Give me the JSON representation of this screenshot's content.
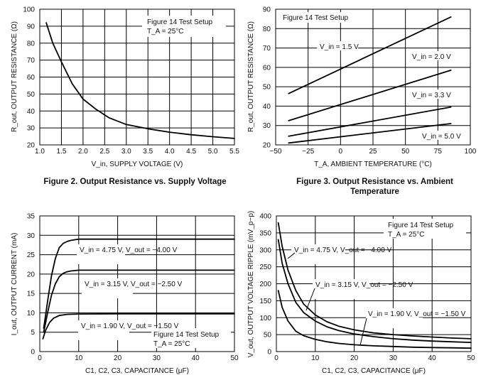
{
  "figures": [
    {
      "caption": "Figure 2. Output Resistance vs. Supply Voltage",
      "chart_data": {
        "type": "line",
        "xlabel": "V_in, SUPPLY VOLTAGE (V)",
        "ylabel": "R_out, OUTPUT RESISTANCE (Ω)",
        "xlim": [
          1.0,
          5.5
        ],
        "ylim": [
          20,
          100
        ],
        "xticks": [
          1.0,
          1.5,
          2.0,
          2.5,
          3.0,
          3.5,
          4.0,
          4.5,
          5.0,
          5.5
        ],
        "xtick_labels": [
          "1.0",
          "1.5",
          "2.0",
          "2.5",
          "3.0",
          "3.5",
          "4.0",
          "4.5",
          "5.0",
          "5.5"
        ],
        "yticks": [
          20,
          30,
          40,
          50,
          60,
          70,
          80,
          90,
          100
        ],
        "ytick_labels": [
          "20",
          "30",
          "40",
          "50",
          "60",
          "70",
          "80",
          "90",
          "100"
        ],
        "grid": true,
        "series": [
          {
            "label": "",
            "x": [
              1.15,
              1.3,
              1.5,
              1.75,
              2.0,
              2.3,
              2.6,
              3.0,
              3.5,
              4.0,
              4.5,
              5.0,
              5.5
            ],
            "y": [
              92,
              80,
              69,
              56,
              47,
              41,
              36,
              32,
              29.5,
              27.5,
              26,
              24.8,
              23.8
            ]
          }
        ],
        "annotations": [
          {
            "lines": [
              "Figure 14 Test Setup",
              "T_A = 25°C"
            ]
          }
        ]
      }
    },
    {
      "caption": "Figure 3. Output Resistance vs. Ambient Temperature",
      "chart_data": {
        "type": "line",
        "xlabel": "T_A, AMBIENT TEMPERATURE (°C)",
        "ylabel": "R_out, OUTPUT RESISTANCE (Ω)",
        "xlim": [
          -50,
          100
        ],
        "ylim": [
          20,
          90
        ],
        "xticks": [
          -50,
          -25,
          0,
          25,
          50,
          75,
          100
        ],
        "xtick_labels": [
          "−50",
          "−25",
          "0",
          "25",
          "50",
          "75",
          "100"
        ],
        "yticks": [
          20,
          30,
          40,
          50,
          60,
          70,
          80,
          90
        ],
        "ytick_labels": [
          "20",
          "30",
          "40",
          "50",
          "60",
          "70",
          "80",
          "90"
        ],
        "grid": true,
        "series": [
          {
            "label": "V_in = 1.5 V",
            "x": [
              -40,
              85
            ],
            "y": [
              46.5,
              86
            ]
          },
          {
            "label": "V_in = 2.0 V",
            "x": [
              -40,
              85
            ],
            "y": [
              32.5,
              58.5
            ]
          },
          {
            "label": "V_in = 3.3 V",
            "x": [
              -40,
              85
            ],
            "y": [
              24.5,
              39.5
            ]
          },
          {
            "label": "V_in = 5.0 V",
            "x": [
              -40,
              85
            ],
            "y": [
              21,
              31
            ]
          }
        ],
        "annotations": [
          {
            "lines": [
              "Figure 14 Test Setup"
            ]
          }
        ]
      }
    },
    {
      "caption": "",
      "chart_data": {
        "type": "line",
        "xlabel": "C1, C2, C3, CAPACITANCE (μF)",
        "ylabel": "I_out, OUTPUT CURRENT (mA)",
        "xlim": [
          0,
          50
        ],
        "ylim": [
          0,
          35
        ],
        "xticks": [
          0,
          10,
          20,
          30,
          40,
          50
        ],
        "xtick_labels": [
          "0",
          "10",
          "20",
          "30",
          "40",
          "50"
        ],
        "yticks": [
          0,
          5,
          10,
          15,
          20,
          25,
          30,
          35
        ],
        "ytick_labels": [
          "0",
          "5",
          "10",
          "15",
          "20",
          "25",
          "30",
          "35"
        ],
        "grid": true,
        "series": [
          {
            "label": "V_in = 4.75 V, V_out = −4.00 V",
            "x": [
              1,
              2,
              3,
              4,
              5,
              6,
              7,
              8,
              10,
              15,
              20,
              30,
              40,
              50
            ],
            "y": [
              6,
              13,
              19.5,
              24,
              26.8,
              27.9,
              28.4,
              28.7,
              29,
              29,
              29,
              29,
              29,
              29
            ]
          },
          {
            "label": "V_in = 3.15 V, V_out = −2.50 V",
            "x": [
              1,
              2,
              3,
              4,
              5,
              6,
              7,
              8,
              10,
              15,
              20,
              30,
              40,
              50
            ],
            "y": [
              5,
              10,
              14.5,
              17.5,
              19.3,
              20.2,
              20.6,
              20.8,
              21,
              21,
              21,
              21,
              21,
              21
            ]
          },
          {
            "label": "V_in = 1.90 V, V_out = −1.50 V",
            "x": [
              0.8,
              1.5,
              2.5,
              3.5,
              5,
              7,
              10,
              20,
              30,
              40,
              50
            ],
            "y": [
              3.3,
              5.5,
              7.5,
              8.6,
              9.3,
              9.6,
              9.7,
              9.75,
              9.75,
              9.75,
              9.75
            ]
          }
        ],
        "annotations": [
          {
            "lines": [
              "Figure 14 Test Setup",
              "T_A = 25°C"
            ]
          }
        ]
      }
    },
    {
      "caption": "",
      "chart_data": {
        "type": "line",
        "xlabel": "C1, C2, C3, CAPACITANCE (μF)",
        "ylabel": "V_out, OUTPUT VOLTAGE RIPPLE (mV_p−p)",
        "xlim": [
          0,
          50
        ],
        "ylim": [
          0,
          400
        ],
        "xticks": [
          0,
          10,
          20,
          30,
          40,
          50
        ],
        "xtick_labels": [
          "0",
          "10",
          "20",
          "30",
          "40",
          "50"
        ],
        "yticks": [
          0,
          50,
          100,
          150,
          200,
          250,
          300,
          350,
          400
        ],
        "ytick_labels": [
          "0",
          "50",
          "100",
          "150",
          "200",
          "250",
          "300",
          "350",
          "400"
        ],
        "grid": true,
        "series": [
          {
            "label": "V_in = 4.75 V, V_out = −4.00 V",
            "x": [
              0.5,
              1.5,
              3,
              5,
              7,
              10,
              13,
              16,
              20,
              25,
              30,
              35,
              40,
              45,
              50
            ],
            "y": [
              380,
              310,
              240,
              180,
              140,
              108,
              88,
              75,
              64,
              55,
              50,
              46,
              43,
              40,
              38
            ]
          },
          {
            "label": "V_in = 3.15 V, V_out = −2.50 V",
            "x": [
              0.5,
              1.5,
              3,
              5,
              7,
              10,
              13,
              16,
              20,
              25,
              30,
              35,
              40,
              45,
              50
            ],
            "y": [
              330,
              260,
              200,
              145,
              115,
              90,
              73,
              62,
              52,
              44,
              38,
              34,
              31,
              29,
              27
            ]
          },
          {
            "label": "V_in = 1.90 V, V_out = −1.50 V",
            "x": [
              0.5,
              1.5,
              3,
              5,
              7,
              10,
              13,
              16,
              20,
              25,
              30,
              35,
              40,
              45,
              50
            ],
            "y": [
              180,
              130,
              90,
              60,
              47,
              36,
              29,
              24,
              20,
              17,
              15,
              13,
              12,
              11,
              10
            ]
          }
        ],
        "annotations": [
          {
            "lines": [
              "Figure 14 Test Setup",
              "T_A = 25°C"
            ]
          }
        ]
      }
    }
  ]
}
